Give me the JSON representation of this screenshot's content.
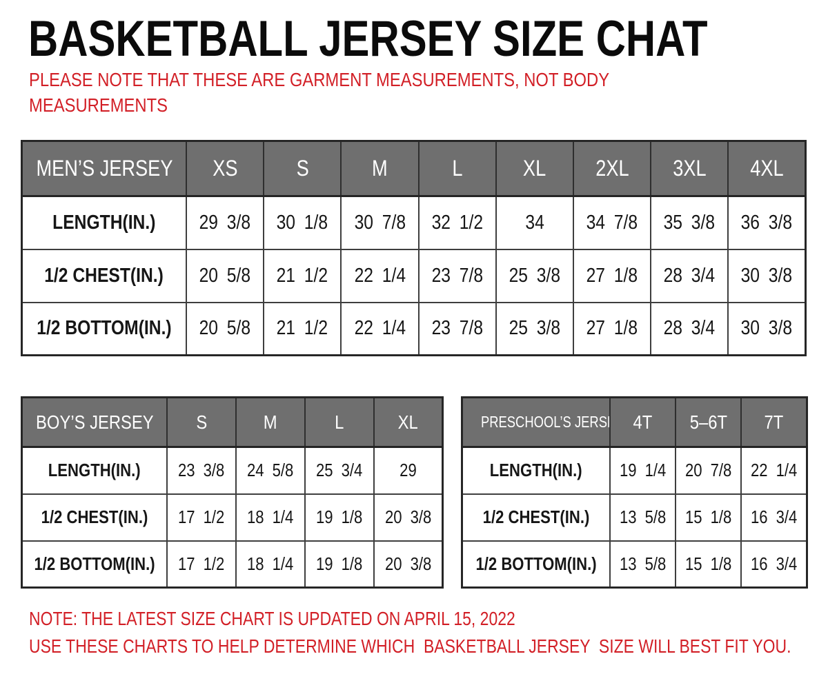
{
  "page": {
    "title": "BASKETBALL JERSEY SIZE CHAT",
    "top_note": "PLEASE NOTE THAT THESE ARE GARMENT MEASUREMENTS, NOT BODY MEASUREMENTS"
  },
  "tables": {
    "mens": {
      "name_header": "MEN’S JERSEY",
      "sizes": [
        "XS",
        "S",
        "M",
        "L",
        "XL",
        "2XL",
        "3XL",
        "4XL"
      ],
      "rows": [
        {
          "label": "LENGTH(IN.)",
          "values": [
            "29 3/8",
            "30 1/8",
            "30 7/8",
            "32 1/2",
            "34",
            "34 7/8",
            "35 3/8",
            "36 3/8"
          ]
        },
        {
          "label": "1/2  CHEST(IN.)",
          "values": [
            "20 5/8",
            "21 1/2",
            "22 1/4",
            "23 7/8",
            "25 3/8",
            "27 1/8",
            "28 3/4",
            "30 3/8"
          ]
        },
        {
          "label": "1/2  BOTTOM(IN.)",
          "values": [
            "20 5/8",
            "21 1/2",
            "22 1/4",
            "23 7/8",
            "25 3/8",
            "27 1/8",
            "28 3/4",
            "30 3/8"
          ]
        }
      ]
    },
    "boys": {
      "name_header": "BOY’S JERSEY",
      "sizes": [
        "S",
        "M",
        "L",
        "XL"
      ],
      "rows": [
        {
          "label": "LENGTH(IN.)",
          "values": [
            "23 3/8",
            "24 5/8",
            "25 3/4",
            "29"
          ]
        },
        {
          "label": "1/2  CHEST(IN.)",
          "values": [
            "17 1/2",
            "18 1/4",
            "19 1/8",
            "20 3/8"
          ]
        },
        {
          "label": "1/2  BOTTOM(IN.)",
          "values": [
            "17 1/2",
            "18 1/4",
            "19 1/8",
            "20 3/8"
          ]
        }
      ]
    },
    "preschool": {
      "name_header": "PRESCHOOL’S JERSEY",
      "sizes": [
        "4T",
        "5–6T",
        "7T"
      ],
      "rows": [
        {
          "label": "LENGTH(IN.)",
          "values": [
            "19 1/4",
            "20 7/8",
            "22 1/4"
          ]
        },
        {
          "label": "1/2  CHEST(IN.)",
          "values": [
            "13 5/8",
            "15 1/8",
            "16 3/4"
          ]
        },
        {
          "label": "1/2  BOTTOM(IN.)",
          "values": [
            "13 5/8",
            "15 1/8",
            "16 3/4"
          ]
        }
      ]
    }
  },
  "footer": {
    "note1": "NOTE: THE LATEST SIZE CHART IS UPDATED ON APRIL 15, 2022",
    "note2": "USE THESE CHARTS TO HELP DETERMINE WHICH  BASKETBALL JERSEY  SIZE WILL BEST FIT YOU."
  },
  "colors": {
    "accent_red": "#d21f26",
    "header_gray": "#6f6f6f",
    "border_dark": "#262626"
  }
}
